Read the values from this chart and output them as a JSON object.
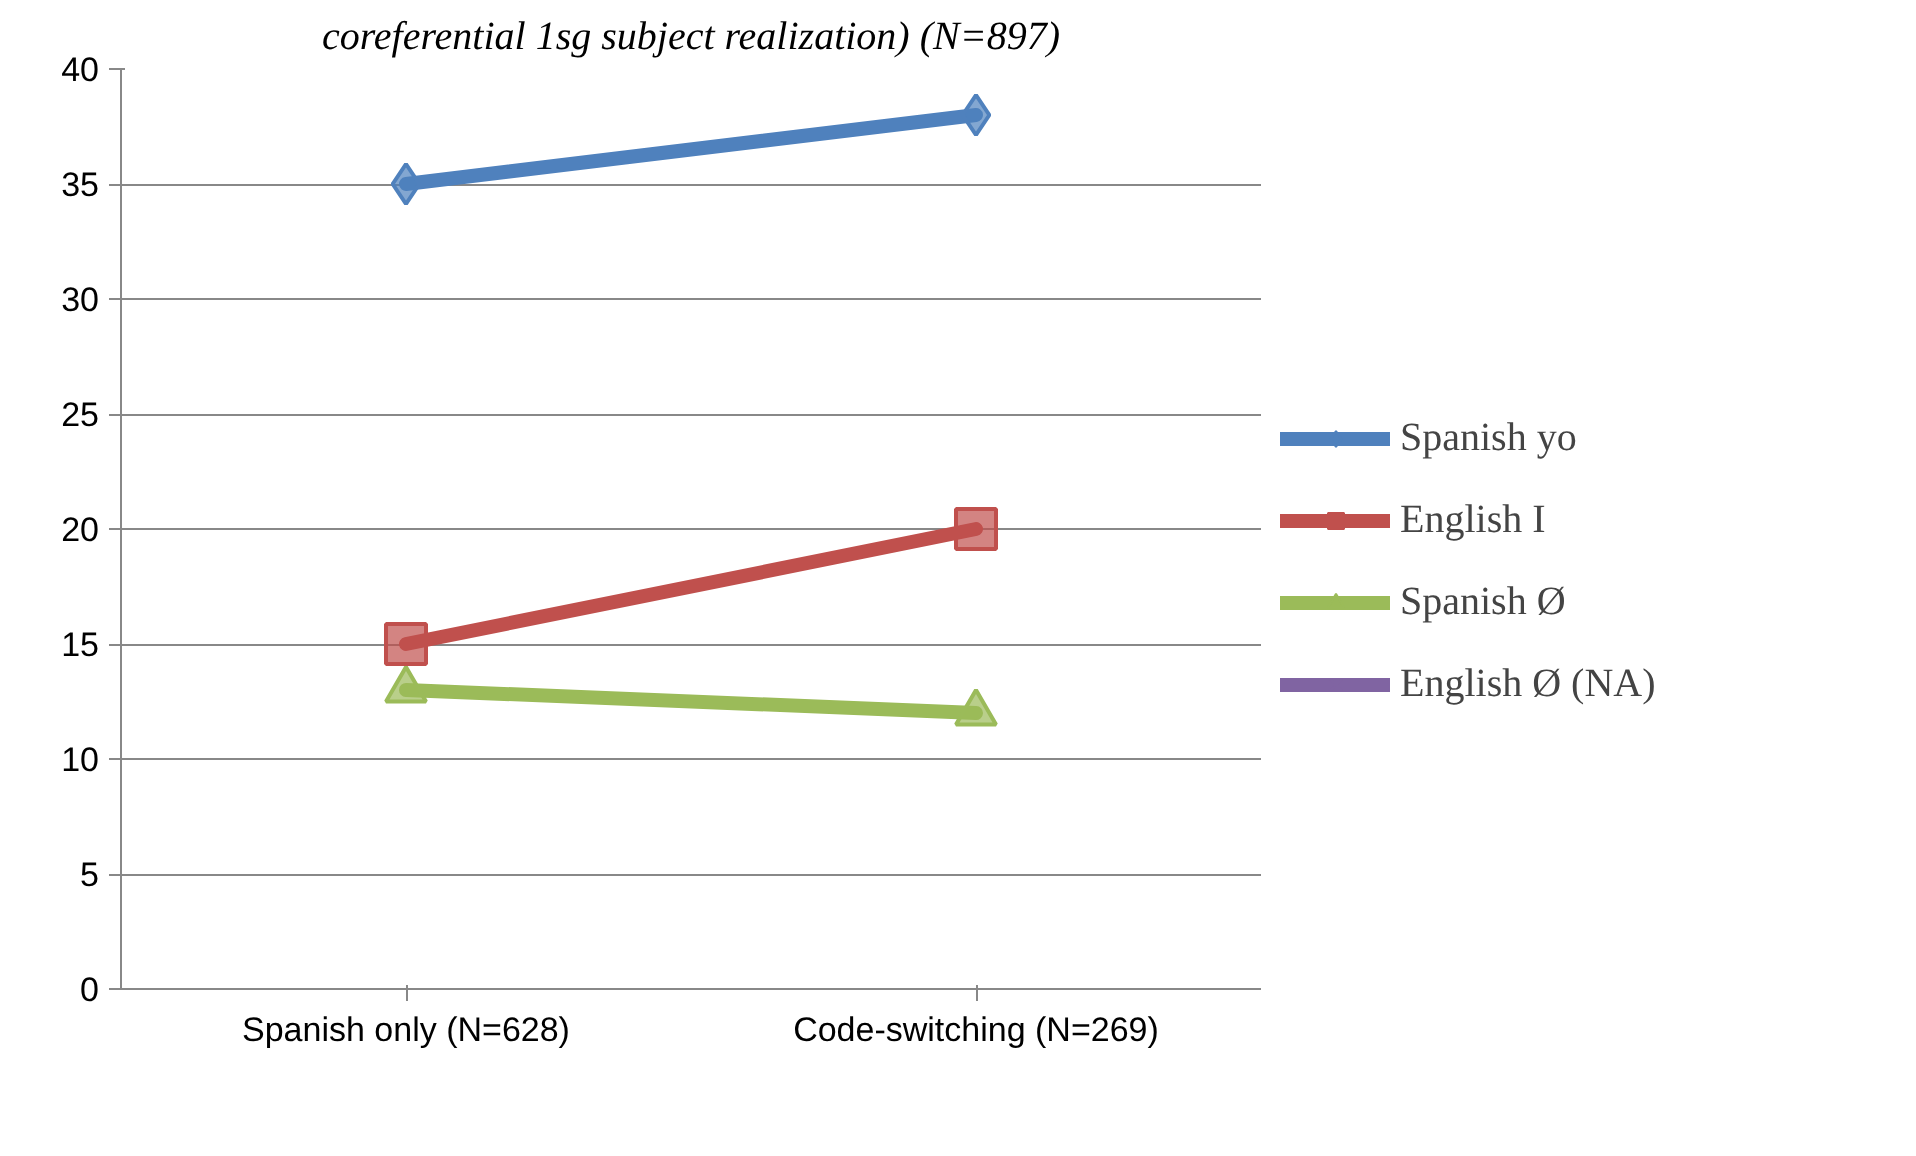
{
  "chart_data": {
    "type": "line",
    "title": "coreferential 1sg subject realization) (N=897)",
    "categories": [
      "Spanish only (N=628)",
      "Code-switching (N=269)"
    ],
    "series": [
      {
        "name": "Spanish yo",
        "color": "#4f81bd",
        "marker": "diamond",
        "values": [
          35,
          38
        ]
      },
      {
        "name": "English I",
        "color": "#c0504d",
        "marker": "square",
        "values": [
          15,
          20
        ]
      },
      {
        "name": "Spanish Ø",
        "color": "#9bbb59",
        "marker": "triangle",
        "values": [
          13,
          12
        ]
      },
      {
        "name": "English Ø (NA)",
        "color": "#8064a2",
        "marker": "cross",
        "values": [
          null,
          null
        ]
      }
    ],
    "ylim": [
      0,
      40
    ],
    "yticks": [
      0,
      5,
      10,
      15,
      20,
      25,
      30,
      35,
      40
    ],
    "grid": "y",
    "legend": "right"
  }
}
